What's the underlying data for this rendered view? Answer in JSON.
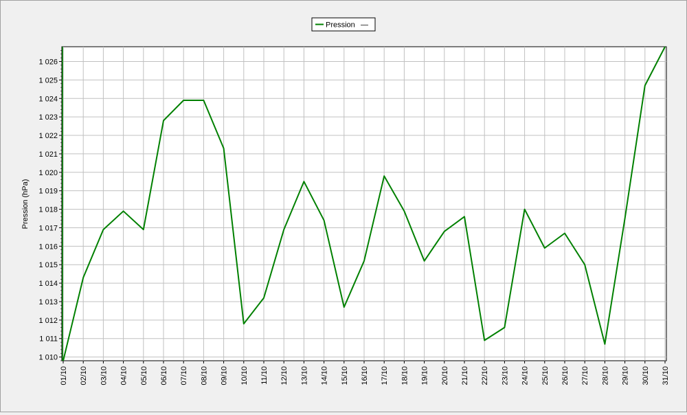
{
  "chart_data": {
    "type": "line",
    "title": "",
    "xlabel": "",
    "ylabel": "Pression (hPa)",
    "categories": [
      "01/10",
      "02/10",
      "03/10",
      "04/10",
      "05/10",
      "06/10",
      "07/10",
      "08/10",
      "09/10",
      "10/10",
      "11/10",
      "12/10",
      "13/10",
      "14/10",
      "15/10",
      "16/10",
      "17/10",
      "18/10",
      "19/10",
      "20/10",
      "21/10",
      "22/10",
      "23/10",
      "24/10",
      "25/10",
      "26/10",
      "27/10",
      "28/10",
      "29/10",
      "30/10",
      "31/10"
    ],
    "series": [
      {
        "name": "Pression",
        "color": "#008000",
        "values": [
          1009.8,
          1014.3,
          1016.9,
          1017.9,
          1016.9,
          1022.8,
          1023.9,
          1023.9,
          1021.3,
          1011.8,
          1013.2,
          1016.9,
          1019.5,
          1017.4,
          1012.7,
          1015.2,
          1019.8,
          1017.9,
          1015.2,
          1016.8,
          1017.6,
          1010.9,
          1011.6,
          1018.0,
          1015.9,
          1016.7,
          1015.0,
          1010.7,
          1017.5,
          1024.7,
          1026.8
        ]
      }
    ],
    "legend": {
      "placement": "top-center",
      "items": [
        "Pression",
        "—"
      ]
    },
    "ylim": [
      1009.8,
      1026.8
    ],
    "yticks": [
      "1 010",
      "1 011",
      "1 012",
      "1 013",
      "1 014",
      "1 015",
      "1 016",
      "1 017",
      "1 018",
      "1 019",
      "1 020",
      "1 021",
      "1 022",
      "1 023",
      "1 024",
      "1 025",
      "1 026"
    ],
    "ytick_values": [
      1010,
      1011,
      1012,
      1013,
      1014,
      1015,
      1016,
      1017,
      1018,
      1019,
      1020,
      1021,
      1022,
      1023,
      1024,
      1025,
      1026
    ],
    "grid": true,
    "colors": {
      "plot_background": "#ffffff",
      "grid": "#c0c0c0",
      "axis": "#000000",
      "line": "#008000",
      "window_background": "#f0f0f0"
    }
  }
}
